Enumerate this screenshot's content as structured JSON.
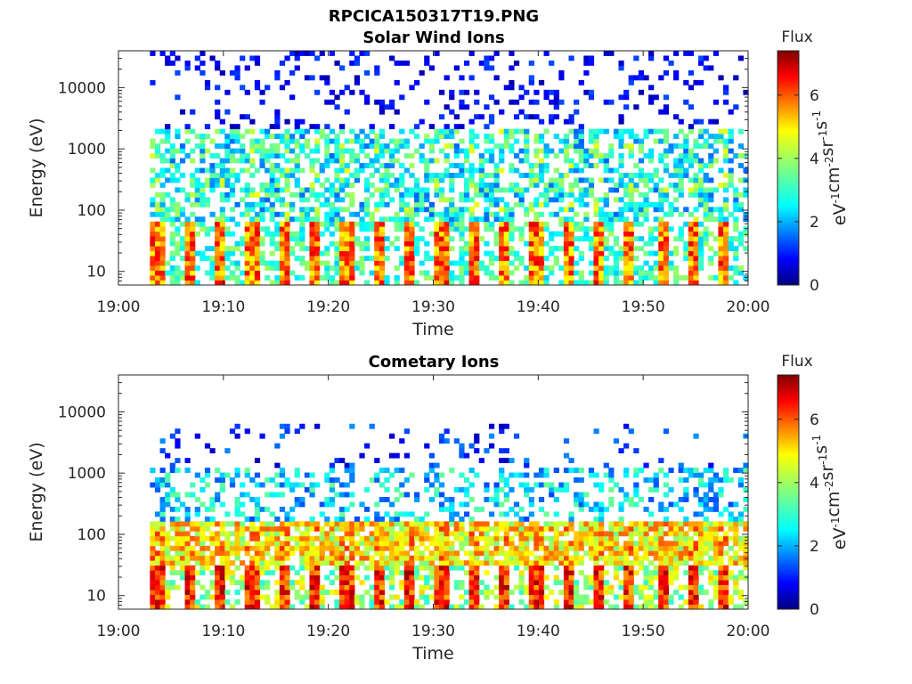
{
  "figure": {
    "main_title": "RPCICA150317T19.PNG"
  },
  "chart_data": [
    {
      "type": "heatmap",
      "title": "Solar Wind Ions",
      "xlabel": "Time",
      "ylabel": "Energy (eV)",
      "x_ticks": [
        "19:00",
        "19:10",
        "19:20",
        "19:30",
        "19:40",
        "19:50",
        "20:00"
      ],
      "xlim": [
        "19:00",
        "20:00"
      ],
      "y_scale": "log",
      "y_ticks": [
        "10",
        "100",
        "1000",
        "10000"
      ],
      "ylim": [
        6,
        40000
      ],
      "colorbar": {
        "title": "Flux",
        "label": "eV-1cm-2sr-1s-1",
        "ticks": [
          "0",
          "2",
          "4",
          "6"
        ],
        "range": [
          0,
          7.4
        ],
        "colormap": "jet"
      },
      "data_extent": {
        "t_start_min": 3,
        "t_end_min": 60
      },
      "pattern": {
        "low_energy_bursts": {
          "energy_range_eV": [
            6,
            60
          ],
          "peak_flux": 6.5,
          "repeat_period_min": 3
        },
        "mid_energy": {
          "energy_range_eV": [
            60,
            2000
          ],
          "typical_flux": 3.0
        },
        "high_energy_sparse": {
          "energy_range_eV": [
            2000,
            40000
          ],
          "typical_flux": 1.0
        }
      }
    },
    {
      "type": "heatmap",
      "title": "Cometary Ions",
      "xlabel": "Time",
      "ylabel": "Energy (eV)",
      "x_ticks": [
        "19:00",
        "19:10",
        "19:20",
        "19:30",
        "19:40",
        "19:50",
        "20:00"
      ],
      "xlim": [
        "19:00",
        "20:00"
      ],
      "y_scale": "log",
      "y_ticks": [
        "10",
        "100",
        "1000",
        "10000"
      ],
      "ylim": [
        6,
        40000
      ],
      "colorbar": {
        "title": "Flux",
        "label": "eV-1cm-2sr-1s-1",
        "ticks": [
          "0",
          "2",
          "4",
          "6"
        ],
        "range": [
          0,
          7.4
        ],
        "colormap": "jet"
      },
      "data_extent": {
        "t_start_min": 3,
        "t_end_min": 60
      },
      "pattern": {
        "low_energy_bursts": {
          "energy_range_eV": [
            6,
            30
          ],
          "peak_flux": 6.8,
          "repeat_period_min": 3
        },
        "mid_energy": {
          "energy_range_eV": [
            30,
            150
          ],
          "typical_flux": 4.8
        },
        "upper_energy": {
          "energy_range_eV": [
            150,
            5000
          ],
          "typical_flux": 2.5
        }
      }
    }
  ]
}
